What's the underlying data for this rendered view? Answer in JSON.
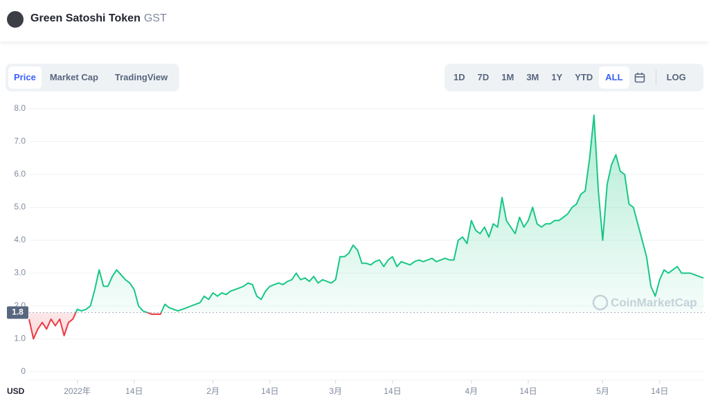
{
  "header": {
    "title": "Green Satoshi Token",
    "symbol": "GST"
  },
  "tabs": [
    "Price",
    "Market Cap",
    "TradingView"
  ],
  "ranges": [
    "1D",
    "7D",
    "1M",
    "3M",
    "1Y",
    "YTD",
    "ALL"
  ],
  "log_button": "LOG",
  "chart_data": {
    "type": "line",
    "y_label": "USD",
    "watermark": "CoinMarketCap",
    "baseline": 1.8,
    "color_up": "#16c784",
    "color_down": "#ea3943",
    "grid": true,
    "ylim": [
      0,
      8
    ],
    "yticks": [
      0,
      {
        "value": 1,
        "label": "1.0"
      },
      {
        "value": 2,
        "label": "2.0"
      },
      {
        "value": 3,
        "label": "3.0"
      },
      {
        "value": 4,
        "label": "4.0"
      },
      {
        "value": 5,
        "label": "5.0"
      },
      {
        "value": 6,
        "label": "6.0"
      },
      {
        "value": 7,
        "label": "7.0"
      },
      {
        "value": 8,
        "label": "8.0"
      }
    ],
    "categories": [
      null,
      null,
      null,
      null,
      null,
      null,
      null,
      null,
      null,
      null,
      null,
      "2022年",
      null,
      null,
      null,
      null,
      null,
      null,
      null,
      null,
      null,
      null,
      null,
      null,
      "14日",
      null,
      null,
      null,
      null,
      null,
      null,
      null,
      null,
      null,
      null,
      null,
      null,
      null,
      null,
      null,
      null,
      null,
      "2月",
      null,
      null,
      null,
      null,
      null,
      null,
      null,
      null,
      null,
      null,
      null,
      null,
      "14日",
      null,
      null,
      null,
      null,
      null,
      null,
      null,
      null,
      null,
      null,
      null,
      null,
      null,
      null,
      "3月",
      null,
      null,
      null,
      null,
      null,
      null,
      null,
      null,
      null,
      null,
      null,
      null,
      "14日",
      null,
      null,
      null,
      null,
      null,
      null,
      null,
      null,
      null,
      null,
      null,
      null,
      null,
      null,
      null,
      null,
      null,
      "4月",
      null,
      null,
      null,
      null,
      null,
      null,
      null,
      null,
      null,
      null,
      null,
      null,
      "14日",
      null,
      null,
      null,
      null,
      null,
      null,
      null,
      null,
      null,
      null,
      null,
      null,
      null,
      null,
      null,
      null,
      "5月",
      null,
      null,
      null,
      null,
      null,
      null,
      null,
      null,
      null,
      null,
      null,
      null,
      "14日",
      null,
      null,
      null,
      null,
      null,
      null,
      null,
      null,
      null,
      null
    ],
    "values": [
      1.6,
      1.0,
      1.3,
      1.5,
      1.3,
      1.6,
      1.4,
      1.6,
      1.1,
      1.5,
      1.6,
      1.9,
      1.85,
      1.9,
      2.0,
      2.5,
      3.1,
      2.6,
      2.6,
      2.9,
      3.1,
      2.95,
      2.8,
      2.7,
      2.5,
      2.0,
      1.85,
      1.8,
      1.75,
      1.75,
      1.75,
      2.05,
      1.95,
      1.9,
      1.85,
      1.9,
      1.95,
      2.0,
      2.05,
      2.1,
      2.3,
      2.2,
      2.4,
      2.3,
      2.4,
      2.35,
      2.45,
      2.5,
      2.55,
      2.6,
      2.7,
      2.65,
      2.3,
      2.2,
      2.45,
      2.6,
      2.65,
      2.7,
      2.65,
      2.75,
      2.8,
      3.0,
      2.8,
      2.85,
      2.75,
      2.9,
      2.7,
      2.8,
      2.75,
      2.7,
      2.8,
      3.5,
      3.5,
      3.6,
      3.85,
      3.7,
      3.3,
      3.3,
      3.25,
      3.35,
      3.4,
      3.2,
      3.4,
      3.5,
      3.2,
      3.35,
      3.3,
      3.25,
      3.35,
      3.4,
      3.35,
      3.4,
      3.45,
      3.35,
      3.4,
      3.45,
      3.4,
      3.4,
      4.0,
      4.1,
      3.9,
      4.6,
      4.3,
      4.2,
      4.4,
      4.1,
      4.5,
      4.4,
      5.3,
      4.6,
      4.4,
      4.2,
      4.7,
      4.4,
      4.6,
      5.0,
      4.5,
      4.4,
      4.5,
      4.5,
      4.6,
      4.6,
      4.7,
      4.8,
      5.0,
      5.1,
      5.4,
      5.5,
      6.5,
      7.8,
      5.5,
      4.0,
      5.7,
      6.3,
      6.6,
      6.1,
      6.0,
      5.1,
      5.0,
      4.5,
      4.0,
      3.5,
      2.6,
      2.3,
      2.8,
      3.1,
      3.0,
      3.1,
      3.2,
      3.0,
      3.0,
      3.0,
      2.95,
      2.9,
      2.85
    ]
  }
}
